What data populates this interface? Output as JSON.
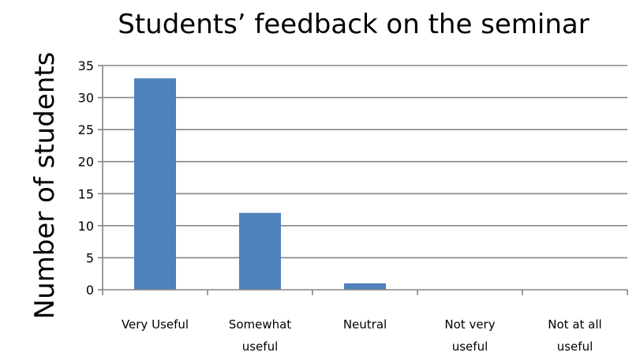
{
  "chart_data": {
    "type": "bar",
    "title": "Students’ feedback on the seminar",
    "ylabel": "Number of students",
    "xlabel": "",
    "categories": [
      [
        "Very Useful"
      ],
      [
        "Somewhat",
        "useful"
      ],
      [
        "Neutral"
      ],
      [
        "Not very",
        "useful"
      ],
      [
        "Not at all",
        "useful"
      ]
    ],
    "values": [
      33,
      12,
      1,
      0,
      0
    ],
    "ylim": [
      0,
      35
    ],
    "yticks": [
      0,
      5,
      10,
      15,
      20,
      25,
      30,
      35
    ],
    "grid": true,
    "legend": "none",
    "bar_color": "#4F81BD",
    "grid_color": "#868686"
  }
}
